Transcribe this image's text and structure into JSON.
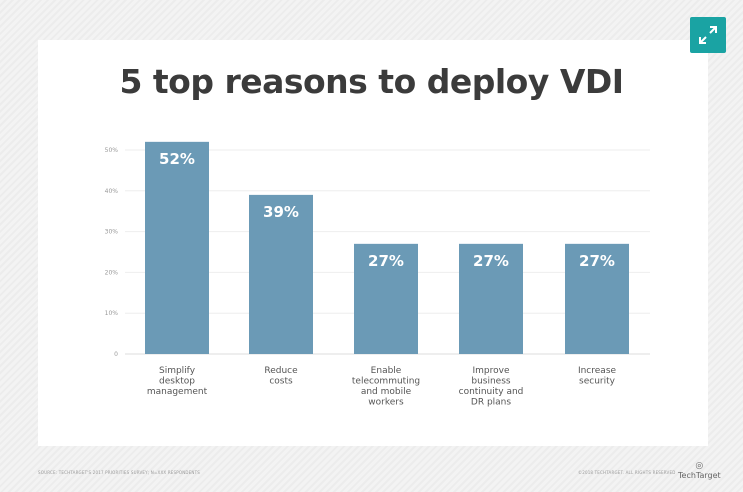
{
  "chart_data": {
    "type": "bar",
    "title": "5 top reasons to deploy VDI",
    "categories": [
      [
        "Simplify",
        "desktop",
        "management"
      ],
      [
        "Reduce",
        "costs"
      ],
      [
        "Enable",
        "telecommuting",
        "and mobile",
        "workers"
      ],
      [
        "Improve",
        "business",
        "continuity and",
        "DR plans"
      ],
      [
        "Increase",
        "security"
      ]
    ],
    "values": [
      52,
      39,
      27,
      27,
      27
    ],
    "data_labels": [
      "52%",
      "39%",
      "27%",
      "27%",
      "27%"
    ],
    "yticks": [
      "0",
      "10%",
      "20%",
      "30%",
      "40%",
      "50%"
    ],
    "ylim": [
      0,
      50
    ],
    "grid": true,
    "bar_color": "#6b9ab6"
  },
  "footer": {
    "source": "SOURCE: TECHTARGET'S 2017 PRIORITIES SURVEY; N=XXX RESPONDENTS",
    "copyright": "©2018 TECHTARGET. ALL RIGHTS RESERVED",
    "logo": "TechTarget"
  },
  "expand_button": {
    "icon": "expand-icon",
    "color": "#1aa3a3"
  }
}
